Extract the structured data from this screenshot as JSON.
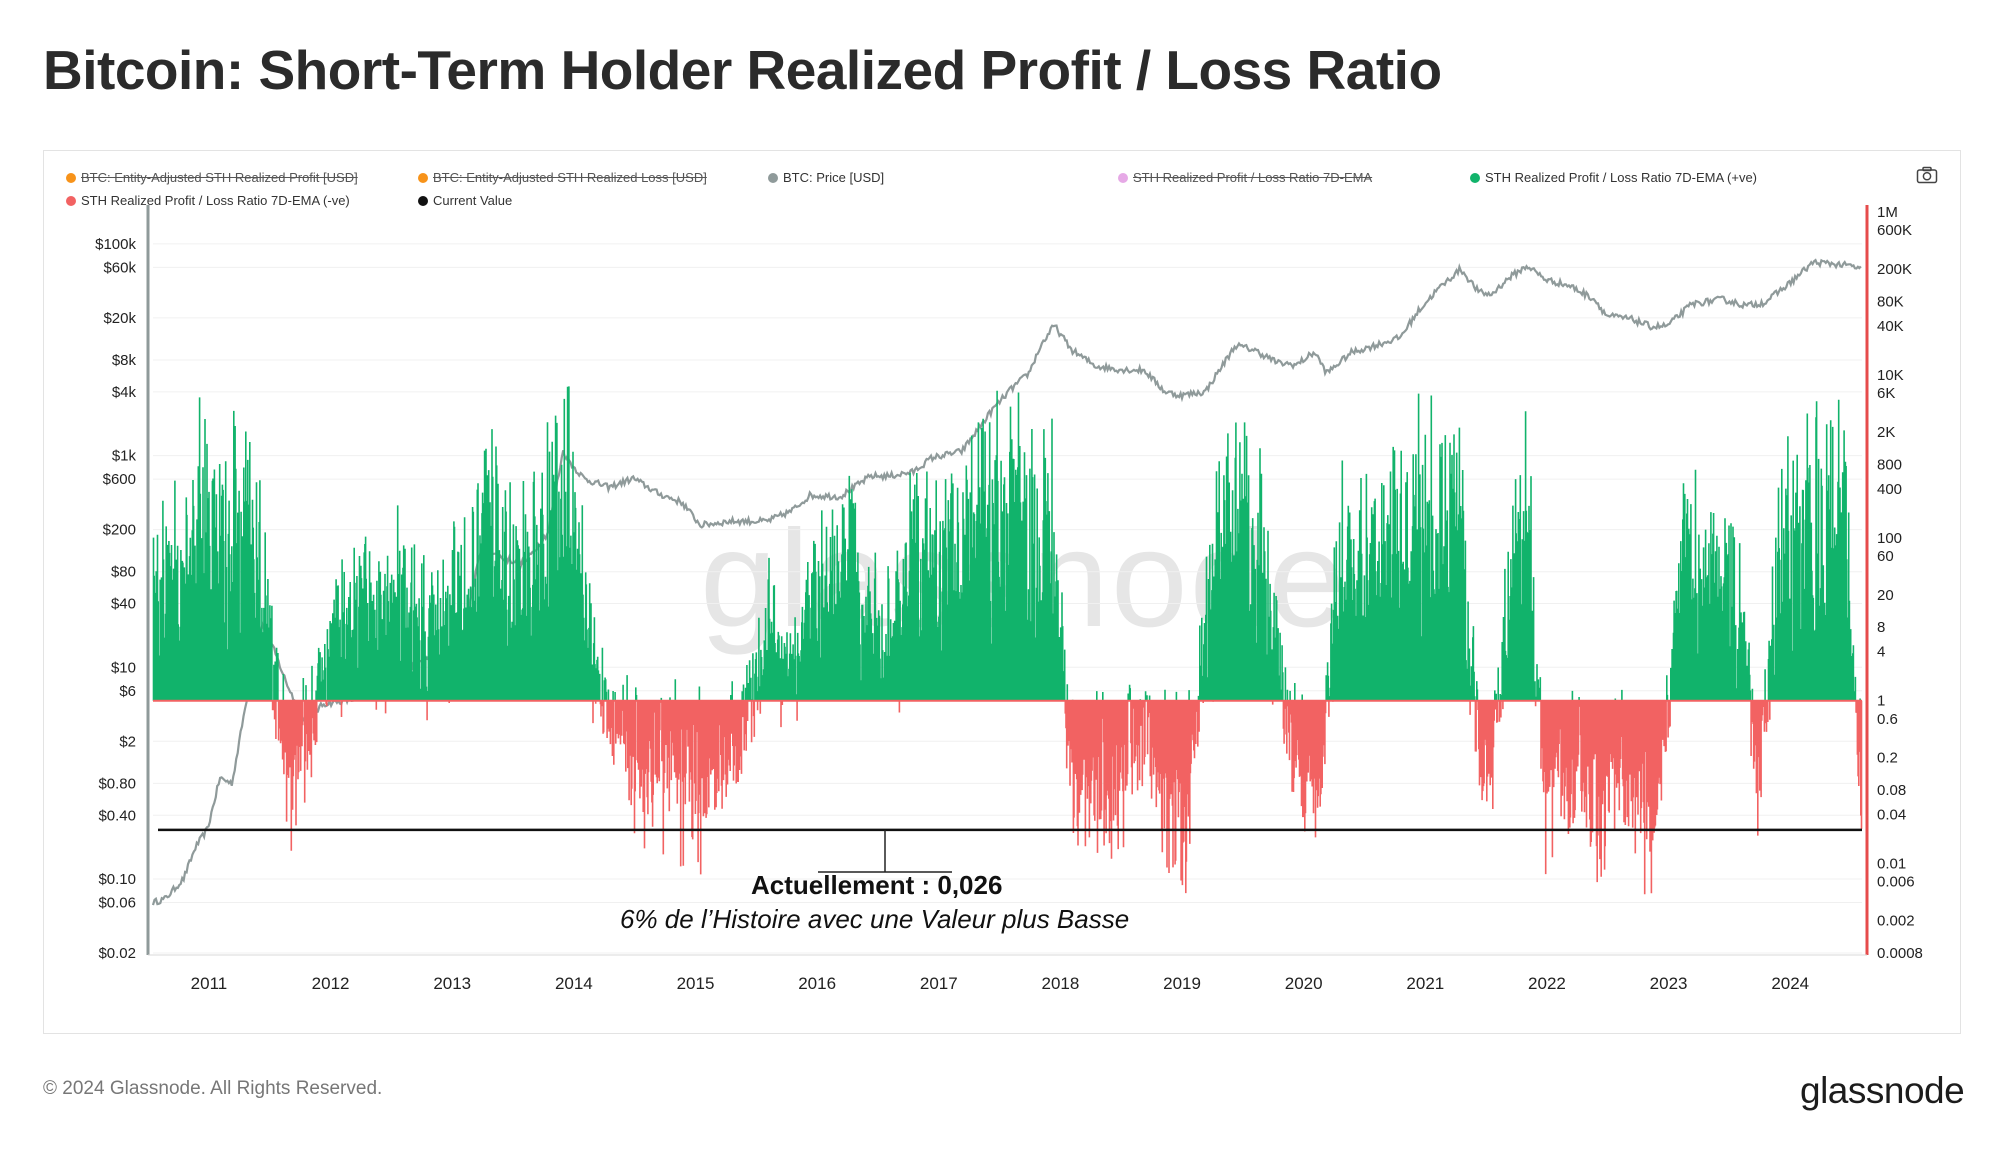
{
  "header": {
    "title": "Bitcoin: Short-Term Holder Realized Profit / Loss Ratio"
  },
  "footer": {
    "copyright": "© 2024 Glassnode. All Rights Reserved.",
    "brand": "glassnode"
  },
  "watermark": "glassnode",
  "annotation": {
    "main": "Actuellement : 0,026",
    "sub": "6% de l’Histoire avec une Valeur plus Basse"
  },
  "legend": [
    {
      "label": "BTC: Entity-Adjusted STH Realized Profit [USD]",
      "color": "#f7931a",
      "active": false
    },
    {
      "label": "BTC: Entity-Adjusted STH Realized Loss [USD]",
      "color": "#f7931a",
      "active": false
    },
    {
      "label": "BTC: Price [USD]",
      "color": "#8f9a9a",
      "active": true
    },
    {
      "label": "STH Realized Profit / Loss Ratio 7D-EMA",
      "color": "#e6a9e6",
      "active": false
    },
    {
      "label": "STH Realized Profit / Loss Ratio 7D-EMA (+ve)",
      "color": "#11b36b",
      "active": true
    },
    {
      "label": "STH Realized Profit / Loss Ratio 7D-EMA (-ve)",
      "color": "#f26262",
      "active": true
    },
    {
      "label": "Current Value",
      "color": "#111111",
      "active": true
    }
  ],
  "colors": {
    "price": "#8f9a9a",
    "positive": "#11b36b",
    "negative": "#f26262",
    "baseline": "#f26262",
    "current": "#111111",
    "left_axis": "#8f9a9a",
    "right_axis": "#e64b4b"
  },
  "chart_data": {
    "type": "line",
    "scale": "log",
    "x_ticks": [
      "2011",
      "2012",
      "2013",
      "2014",
      "2015",
      "2016",
      "2017",
      "2018",
      "2019",
      "2020",
      "2021",
      "2022",
      "2023",
      "2024"
    ],
    "x_range": [
      2010.55,
      2024.6
    ],
    "left_axis": {
      "label": "BTC: Price [USD]",
      "range": [
        0.02,
        200000
      ],
      "ticks": [
        {
          "v": 100000,
          "t": "$100k"
        },
        {
          "v": 60000,
          "t": "$60k"
        },
        {
          "v": 20000,
          "t": "$20k"
        },
        {
          "v": 8000,
          "t": "$8k"
        },
        {
          "v": 4000,
          "t": "$4k"
        },
        {
          "v": 1000,
          "t": "$1k"
        },
        {
          "v": 600,
          "t": "$600"
        },
        {
          "v": 200,
          "t": "$200"
        },
        {
          "v": 80,
          "t": "$80"
        },
        {
          "v": 40,
          "t": "$40"
        },
        {
          "v": 10,
          "t": "$10"
        },
        {
          "v": 6,
          "t": "$6"
        },
        {
          "v": 2,
          "t": "$2"
        },
        {
          "v": 0.8,
          "t": "$0.80"
        },
        {
          "v": 0.4,
          "t": "$0.40"
        },
        {
          "v": 0.1,
          "t": "$0.10"
        },
        {
          "v": 0.06,
          "t": "$0.06"
        },
        {
          "v": 0.02,
          "t": "$0.02"
        }
      ]
    },
    "right_axis": {
      "label": "STH Realized Profit / Loss Ratio 7D-EMA",
      "range": [
        0.0008,
        1000000
      ],
      "ticks": [
        {
          "v": 1000000,
          "t": "1M"
        },
        {
          "v": 600000,
          "t": "600K"
        },
        {
          "v": 200000,
          "t": "200K"
        },
        {
          "v": 80000,
          "t": "80K"
        },
        {
          "v": 40000,
          "t": "40K"
        },
        {
          "v": 10000,
          "t": "10K"
        },
        {
          "v": 6000,
          "t": "6K"
        },
        {
          "v": 2000,
          "t": "2K"
        },
        {
          "v": 800,
          "t": "800"
        },
        {
          "v": 400,
          "t": "400"
        },
        {
          "v": 100,
          "t": "100"
        },
        {
          "v": 60,
          "t": "60"
        },
        {
          "v": 20,
          "t": "20"
        },
        {
          "v": 8,
          "t": "8"
        },
        {
          "v": 4,
          "t": "4"
        },
        {
          "v": 1,
          "t": "1"
        },
        {
          "v": 0.6,
          "t": "0.6"
        },
        {
          "v": 0.2,
          "t": "0.2"
        },
        {
          "v": 0.08,
          "t": "0.08"
        },
        {
          "v": 0.04,
          "t": "0.04"
        },
        {
          "v": 0.01,
          "t": "0.01"
        },
        {
          "v": 0.006,
          "t": "0.006"
        },
        {
          "v": 0.002,
          "t": "0.002"
        },
        {
          "v": 0.0008,
          "t": "0.0008"
        }
      ]
    },
    "baseline_ratio": 1,
    "current_value": 0.026,
    "price_series": {
      "name": "BTC: Price [USD]",
      "x": [
        2010.55,
        2010.65,
        2010.8,
        2010.9,
        2011.0,
        2011.1,
        2011.2,
        2011.35,
        2011.45,
        2011.55,
        2011.65,
        2011.8,
        2011.95,
        2012.2,
        2012.5,
        2012.7,
        2012.95,
        2013.1,
        2013.25,
        2013.4,
        2013.6,
        2013.8,
        2013.92,
        2014.0,
        2014.1,
        2014.3,
        2014.5,
        2014.7,
        2014.9,
        2015.05,
        2015.3,
        2015.6,
        2015.8,
        2015.95,
        2016.2,
        2016.45,
        2016.6,
        2016.8,
        2016.95,
        2017.2,
        2017.45,
        2017.6,
        2017.75,
        2017.85,
        2017.96,
        2018.1,
        2018.3,
        2018.5,
        2018.7,
        2018.87,
        2019.0,
        2019.2,
        2019.45,
        2019.6,
        2019.8,
        2019.95,
        2020.1,
        2020.2,
        2020.4,
        2020.6,
        2020.8,
        2020.95,
        2021.1,
        2021.3,
        2021.45,
        2021.55,
        2021.7,
        2021.85,
        2022.0,
        2022.2,
        2022.4,
        2022.5,
        2022.7,
        2022.87,
        2023.0,
        2023.2,
        2023.45,
        2023.65,
        2023.8,
        2024.0,
        2024.2,
        2024.35,
        2024.5,
        2024.6
      ],
      "y": [
        0.06,
        0.065,
        0.1,
        0.2,
        0.3,
        0.9,
        0.8,
        8,
        25,
        14,
        7,
        3,
        4.5,
        5,
        9,
        11,
        13,
        20,
        140,
        110,
        95,
        190,
        1100,
        800,
        600,
        500,
        610,
        440,
        360,
        220,
        240,
        240,
        300,
        420,
        410,
        640,
        640,
        700,
        950,
        1100,
        2700,
        4200,
        6000,
        11000,
        17000,
        10000,
        7000,
        6500,
        6400,
        4000,
        3700,
        4000,
        11000,
        10000,
        7500,
        7200,
        9500,
        6000,
        9400,
        11000,
        13000,
        23000,
        36000,
        58000,
        35000,
        33000,
        48000,
        62000,
        46000,
        40000,
        30000,
        21000,
        19500,
        16500,
        16800,
        27000,
        30000,
        26000,
        28000,
        42000,
        67000,
        65000,
        62000,
        58000
      ]
    },
    "ratio_anchors": {
      "name": "STH Realized Profit / Loss Ratio 7D-EMA",
      "x": [
        2010.55,
        2010.7,
        2010.8,
        2010.9,
        2011.0,
        2011.15,
        2011.35,
        2011.55,
        2011.7,
        2011.85,
        2012.0,
        2012.3,
        2012.6,
        2012.8,
        2013.0,
        2013.2,
        2013.35,
        2013.5,
        2013.7,
        2013.85,
        2014.0,
        2014.1,
        2014.3,
        2014.6,
        2014.8,
        2015.0,
        2015.2,
        2015.45,
        2015.6,
        2015.8,
        2016.0,
        2016.3,
        2016.55,
        2016.8,
        2017.0,
        2017.2,
        2017.4,
        2017.6,
        2017.8,
        2017.93,
        2018.1,
        2018.3,
        2018.5,
        2018.7,
        2018.85,
        2019.05,
        2019.2,
        2019.35,
        2019.55,
        2019.75,
        2019.9,
        2020.15,
        2020.3,
        2020.5,
        2020.75,
        2020.9,
        2021.05,
        2021.3,
        2021.45,
        2021.55,
        2021.7,
        2021.85,
        2022.0,
        2022.15,
        2022.35,
        2022.5,
        2022.7,
        2022.87,
        2023.0,
        2023.1,
        2023.3,
        2023.5,
        2023.65,
        2023.75,
        2023.9,
        2024.1,
        2024.25,
        2024.45,
        2024.6
      ],
      "y": [
        20,
        40,
        60,
        200,
        400,
        120,
        300,
        2,
        0.06,
        0.5,
        6,
        15,
        25,
        10,
        20,
        50,
        300,
        40,
        60,
        400,
        300,
        20,
        0.5,
        0.1,
        0.1,
        0.05,
        0.2,
        0.5,
        10,
        1.5,
        30,
        60,
        4,
        80,
        60,
        100,
        200,
        250,
        150,
        400,
        0.1,
        0.05,
        0.08,
        0.5,
        0.05,
        0.04,
        10,
        150,
        300,
        20,
        0.2,
        0.05,
        100,
        50,
        100,
        200,
        300,
        350,
        0.2,
        0.1,
        30,
        200,
        0.05,
        0.2,
        0.05,
        0.06,
        0.1,
        0.02,
        0.5,
        80,
        40,
        60,
        4,
        0.04,
        60,
        300,
        200,
        400,
        0.026
      ]
    }
  }
}
